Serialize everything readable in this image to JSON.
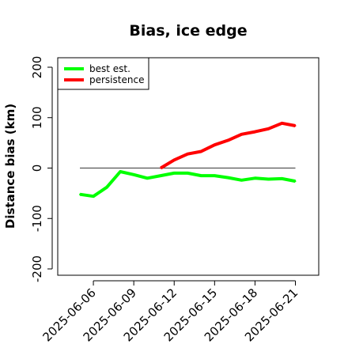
{
  "chart_data": {
    "type": "line",
    "title": "Bias, ice edge",
    "xlabel": "",
    "ylabel": "Distance bias (km)",
    "xlim": [
      "2025-06-04",
      "2025-06-22"
    ],
    "ylim": [
      -200,
      200
    ],
    "yticks": [
      -200,
      -100,
      0,
      100,
      200
    ],
    "xticks": [
      "2025-06-06",
      "2025-06-09",
      "2025-06-12",
      "2025-06-15",
      "2025-06-18",
      "2025-06-21"
    ],
    "reference_line": {
      "y": 0,
      "x_from": "2025-06-05",
      "x_to": "2025-06-21",
      "color": "#555555"
    },
    "grid": false,
    "legend": "top-left",
    "series": [
      {
        "name": "best est.",
        "color": "#00ff00",
        "points": [
          [
            "2025-06-05",
            -52
          ],
          [
            "2025-06-06",
            -56
          ],
          [
            "2025-06-07",
            -38
          ],
          [
            "2025-06-08",
            -7
          ],
          [
            "2025-06-09",
            -13
          ],
          [
            "2025-06-10",
            -20
          ],
          [
            "2025-06-11",
            -15
          ],
          [
            "2025-06-12",
            -10
          ],
          [
            "2025-06-13",
            -10
          ],
          [
            "2025-06-14",
            -15
          ],
          [
            "2025-06-15",
            -15
          ],
          [
            "2025-06-16",
            -19
          ],
          [
            "2025-06-17",
            -24
          ],
          [
            "2025-06-18",
            -20
          ],
          [
            "2025-06-19",
            -22
          ],
          [
            "2025-06-20",
            -21
          ],
          [
            "2025-06-21",
            -26
          ]
        ]
      },
      {
        "name": "persistence",
        "color": "#ff0000",
        "points": [
          [
            "2025-06-11",
            0
          ],
          [
            "2025-06-12",
            16
          ],
          [
            "2025-06-13",
            28
          ],
          [
            "2025-06-14",
            33
          ],
          [
            "2025-06-15",
            46
          ],
          [
            "2025-06-16",
            55
          ],
          [
            "2025-06-17",
            67
          ],
          [
            "2025-06-18",
            72
          ],
          [
            "2025-06-19",
            78
          ],
          [
            "2025-06-20",
            89
          ],
          [
            "2025-06-21",
            84
          ]
        ]
      }
    ]
  }
}
